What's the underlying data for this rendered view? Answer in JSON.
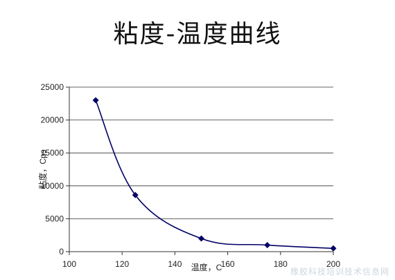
{
  "chart_data": {
    "type": "line",
    "title": "粘度-温度曲线",
    "xlabel": "温度，C",
    "ylabel": "粘度，Cps",
    "xlim": [
      100,
      200
    ],
    "ylim": [
      0,
      25000
    ],
    "x_ticks": [
      "100",
      "120",
      "140",
      "160",
      "180",
      "200"
    ],
    "y_ticks": [
      "0",
      "5000",
      "10000",
      "15000",
      "20000",
      "25000"
    ],
    "grid": "horizontal",
    "legend": "none",
    "series": [
      {
        "x": [
          110,
          125,
          150,
          175,
          200
        ],
        "y": [
          23000,
          8600,
          2000,
          1000,
          500
        ],
        "color": "#000066"
      }
    ]
  },
  "watermark": "橡胶科技培训技术信息网"
}
